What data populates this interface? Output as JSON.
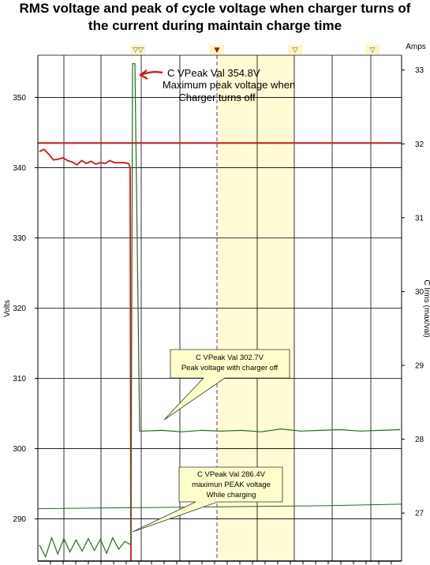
{
  "title": {
    "line1": "RMS voltage and peak of cycle voltage when charger turns of",
    "line2": "the current during maintain charge time"
  },
  "chart_data": {
    "type": "line",
    "ylabel": "Volts",
    "y2label": "C Irms (max/val)",
    "y2unit": "Amps",
    "ylim": [
      284,
      356
    ],
    "y2lim": [
      26.35,
      33.2
    ],
    "yticks": [
      290,
      300,
      310,
      320,
      330,
      340,
      350
    ],
    "y2ticks": [
      27,
      28,
      29,
      30,
      31,
      32,
      33
    ],
    "grid": true,
    "cursor_markers": [
      "▽▽",
      "▼",
      "▽",
      "▽"
    ],
    "colors": {
      "rms": "#dd1111",
      "peak": "#1e6e1e",
      "highlight": "#fffbd5",
      "cursor": "#aa2222",
      "callout_fill": "#ffffcc",
      "arrow": "#dd1111"
    },
    "series": [
      {
        "key": "rms",
        "values": [
          342.3,
          342.6,
          341.9,
          341.1,
          341.2,
          341.4,
          341.0,
          340.8,
          340.4,
          341.0,
          340.6,
          340.9,
          340.5,
          340.7,
          340.6,
          341.0,
          340.7,
          340.7,
          340.7,
          340.6
        ]
      },
      {
        "key": "peak",
        "values": [
          286.3,
          284.6,
          287.3,
          285.0,
          287.2,
          285.3,
          287.0,
          285.4,
          287.2,
          285.5,
          287.1,
          285.1,
          287.3,
          285.7,
          286.8,
          286.3,
          302.5,
          302.6,
          302.4,
          302.6,
          302.5,
          302.6,
          302.4,
          302.8,
          302.5,
          302.6,
          302.7,
          302.5,
          302.6,
          302.7
        ]
      },
      {
        "key": "irms",
        "values": [
          27.06,
          27.07,
          27.08,
          27.09,
          27.1,
          27.12
        ]
      }
    ],
    "rms_level_line": 343.5,
    "annotations": {
      "top_line1": "C VPeak Val 354.8V",
      "top_line2": "Maximum peak voltage when",
      "top_line3": "Charger turns off",
      "mid_line1": "C VPeak Val 302.7V",
      "mid_line2": "Peak voltage with charger off",
      "low_line1": "C VPeak Val 286.4V",
      "low_line2": "maximun PEAK voltage",
      "low_line3": "While charging"
    }
  }
}
